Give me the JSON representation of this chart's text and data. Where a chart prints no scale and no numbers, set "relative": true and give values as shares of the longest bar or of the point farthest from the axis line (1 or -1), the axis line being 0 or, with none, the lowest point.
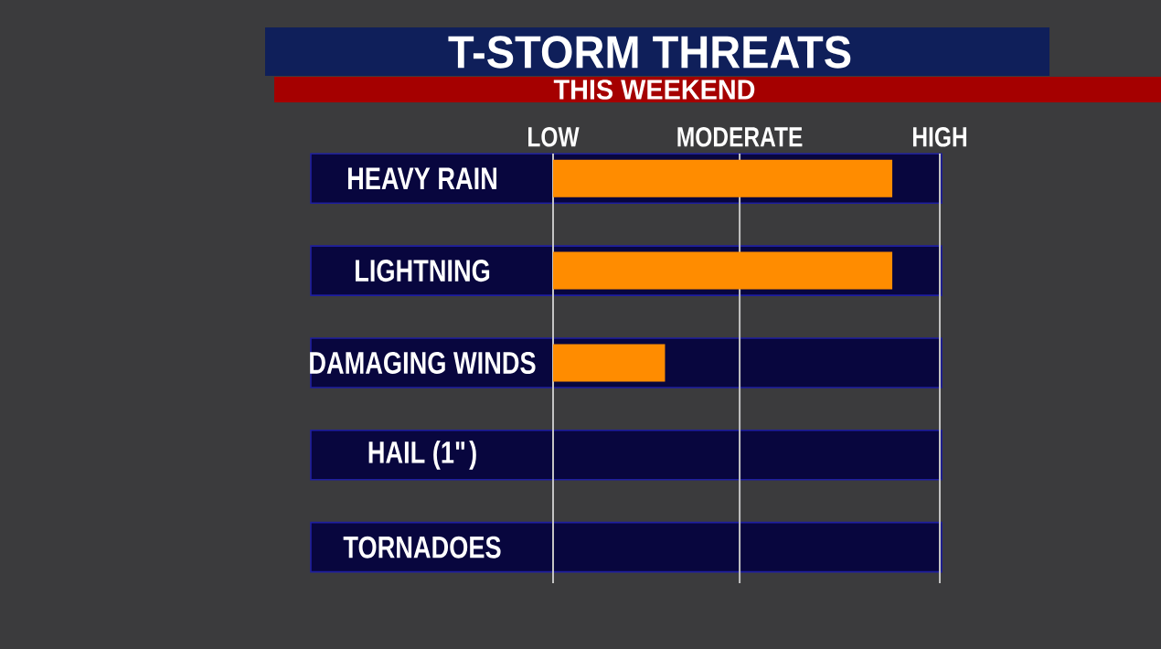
{
  "chart_data": {
    "type": "bar",
    "orientation": "horizontal",
    "relative": true,
    "title": "T-STORM THREATS",
    "subtitle": "THIS WEEKEND",
    "categories": [
      "HEAVY RAIN",
      "LIGHTNING",
      "DAMAGING WINDS",
      "HAIL (1\")",
      "TORNADOES"
    ],
    "values": [
      1,
      1,
      0.33,
      0,
      0
    ],
    "color": "#ff8c00",
    "annotations": [
      "LOW"
    ],
    "ref_lines": [
      {
        "axis": "x",
        "value": 0.55,
        "label": "MODERATE",
        "color": "#c4c4c4"
      },
      {
        "axis": "x",
        "value": 1.14,
        "label": "HIGH",
        "color": "#c4c4c4"
      }
    ]
  }
}
